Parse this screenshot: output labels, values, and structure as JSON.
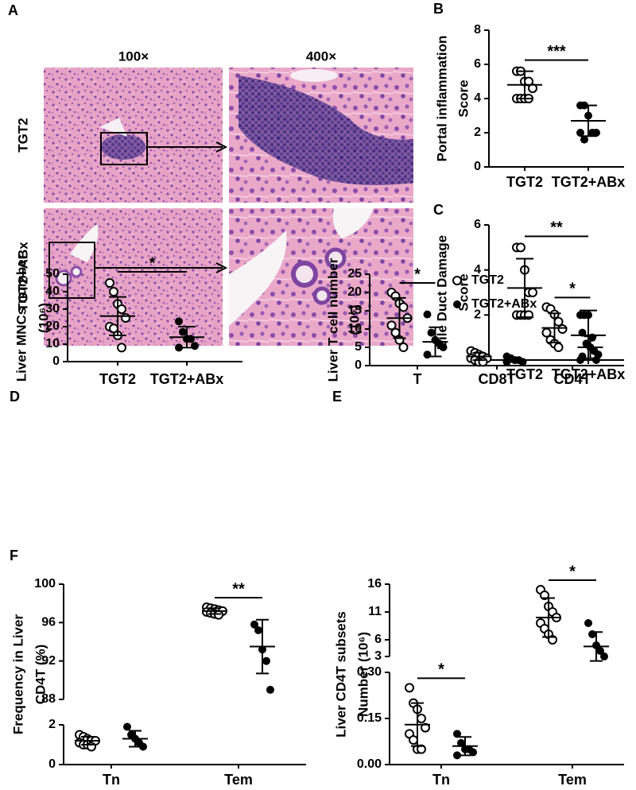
{
  "panel_a": {
    "letter": "A",
    "columns": [
      "100×",
      "400×"
    ],
    "rows": [
      "TGT2",
      "TGT2+ABx"
    ]
  },
  "chart_data": [
    {
      "type": "dotplot",
      "panel": "B",
      "ylabel": [
        "Portal inflammation",
        "Score"
      ],
      "categories": [
        "TGT2",
        "TGT2+ABx"
      ],
      "groups": [
        {
          "marker": "open",
          "values": [
            5.6,
            5.6,
            5,
            5,
            4.6,
            4,
            4,
            4,
            4
          ],
          "mean": 4.8,
          "sd": 0.8
        },
        {
          "marker": "filled",
          "values": [
            3.6,
            3.6,
            3,
            2,
            2,
            2,
            1.6
          ],
          "mean": 2.7,
          "sd": 0.9
        }
      ],
      "ylim": [
        0,
        8
      ],
      "yticks": [
        0,
        2,
        4,
        6,
        8
      ],
      "significance": [
        {
          "label": "***"
        }
      ]
    },
    {
      "type": "dotplot",
      "panel": "C",
      "ylabel": [
        "Bile Duct Damage",
        "Score"
      ],
      "categories": [
        "TGT2",
        "TGT2+ABx"
      ],
      "groups": [
        {
          "marker": "open",
          "values": [
            5,
            5,
            4,
            3,
            3,
            2,
            2,
            2,
            2
          ],
          "mean": 3.2,
          "sd": 1.3
        },
        {
          "marker": "filled",
          "values": [
            2,
            2,
            2,
            1,
            0,
            0
          ],
          "mean": 1.1,
          "sd": 1.1
        }
      ],
      "ylim": [
        0,
        6
      ],
      "yticks": [
        0,
        2,
        4,
        6
      ],
      "significance": [
        {
          "label": "**"
        }
      ]
    },
    {
      "type": "dotplot",
      "panel": "D",
      "ylabel": [
        "Liver MNCs number",
        "(10⁶)"
      ],
      "categories": [
        "TGT2",
        "TGT2+ABx"
      ],
      "groups": [
        {
          "marker": "open",
          "values": [
            45,
            40,
            33,
            30,
            25,
            20,
            19,
            15,
            8
          ],
          "mean": 26,
          "sd": 11
        },
        {
          "marker": "filled",
          "values": [
            23,
            17,
            13,
            13,
            9,
            8
          ],
          "mean": 14,
          "sd": 6
        }
      ],
      "ylim": [
        0,
        50
      ],
      "yticks": [
        0,
        10,
        20,
        30,
        40,
        50
      ],
      "significance": [
        {
          "label": "*"
        }
      ]
    },
    {
      "type": "dotplot",
      "panel": "E",
      "ylabel": [
        "Liver T cell number",
        "(10⁶)"
      ],
      "categories": [
        "T",
        "CD8T",
        "CD4T"
      ],
      "series": [
        {
          "name": "TGT2",
          "marker": "open",
          "groups": [
            {
              "values": [
                20,
                19,
                17,
                16,
                13,
                11,
                9,
                7,
                5
              ],
              "mean": 13,
              "sd": 5.5
            },
            {
              "values": [
                4,
                3.5,
                3,
                2.5,
                2,
                2,
                1.5,
                1,
                1
              ],
              "mean": 2.5,
              "sd": 1
            },
            {
              "values": [
                16,
                15.5,
                14,
                12,
                10,
                9,
                7,
                6,
                5
              ],
              "mean": 10.3,
              "sd": 4
            }
          ]
        },
        {
          "name": "TGT2+ABx",
          "marker": "filled",
          "groups": [
            {
              "values": [
                14,
                9,
                7,
                6,
                5,
                3
              ],
              "mean": 6.5,
              "sd": 4
            },
            {
              "values": [
                2.5,
                2,
                1.5,
                1.5,
                1,
                1
              ],
              "mean": 1.5,
              "sd": 0.5
            },
            {
              "values": [
                9,
                6,
                5,
                4,
                3,
                2.5
              ],
              "mean": 5,
              "sd": 3
            }
          ]
        }
      ],
      "ylim": [
        0,
        25
      ],
      "yticks": [
        0,
        5,
        10,
        15,
        20,
        25
      ],
      "legend": "upper right",
      "significance": [
        {
          "category": 0,
          "label": "*"
        },
        {
          "category": 2,
          "label": "*"
        }
      ]
    },
    {
      "type": "dotplot",
      "panel": "F",
      "ylabel": [
        "Frequency in Liver",
        "CD4T (%)"
      ],
      "categories": [
        "Tn",
        "Tem"
      ],
      "series": [
        {
          "marker": "open",
          "groups": [
            {
              "values": [
                1.5,
                1.4,
                1.3,
                1.2,
                1.2,
                1.1,
                1.0,
                1.0,
                0.9
              ],
              "mean": 1.2,
              "sd": 0.2
            },
            {
              "values": [
                97.6,
                97.5,
                97.4,
                97.3,
                97.2,
                97.1,
                97.0,
                96.9,
                96.8
              ],
              "mean": 97.2,
              "sd": 0.3
            }
          ]
        },
        {
          "marker": "filled",
          "groups": [
            {
              "values": [
                1.9,
                1.5,
                1.3,
                1.1,
                0.9
              ],
              "mean": 1.3,
              "sd": 0.4
            },
            {
              "values": [
                95.8,
                95.2,
                93.2,
                92,
                89
              ],
              "mean": 93.5,
              "sd": 2.8
            }
          ]
        }
      ],
      "segments": [
        {
          "ylim": [
            0,
            2
          ],
          "yticks": [
            0,
            2
          ]
        },
        {
          "ylim": [
            88,
            100
          ],
          "yticks": [
            88,
            92,
            96,
            100
          ]
        }
      ],
      "significance": [
        {
          "category": 1,
          "label": "**"
        }
      ]
    },
    {
      "type": "dotplot",
      "ylabel": [
        "Liver CD4T subsets",
        "Number (10⁶)"
      ],
      "categories": [
        "Tn",
        "Tem"
      ],
      "series": [
        {
          "marker": "open",
          "groups": [
            {
              "values": [
                0.25,
                0.2,
                0.18,
                0.15,
                0.12,
                0.1,
                0.08,
                0.05,
                0.05
              ],
              "mean": 0.13,
              "sd": 0.07
            },
            {
              "values": [
                15,
                14,
                12,
                11,
                10,
                9,
                8,
                7,
                6
              ],
              "mean": 10,
              "sd": 3.5
            }
          ]
        },
        {
          "marker": "filled",
          "groups": [
            {
              "values": [
                0.1,
                0.07,
                0.05,
                0.05,
                0.04,
                0.03
              ],
              "mean": 0.06,
              "sd": 0.03
            },
            {
              "values": [
                9,
                7,
                5,
                4,
                3
              ],
              "mean": 4.8,
              "sd": 2.6
            }
          ]
        }
      ],
      "segments": [
        {
          "ylim": [
            0,
            0.3
          ],
          "yticks": [
            {
              "value": 0,
              "label": "0.00"
            },
            {
              "value": 0.15,
              "label": "0.15"
            },
            {
              "value": 0.3,
              "label": "0.30"
            }
          ]
        },
        {
          "ylim": [
            3,
            16
          ],
          "yticks": [
            3,
            6,
            11,
            16
          ]
        }
      ],
      "significance": [
        {
          "category": 0,
          "label": "*"
        },
        {
          "category": 1,
          "label": "*"
        }
      ]
    }
  ]
}
